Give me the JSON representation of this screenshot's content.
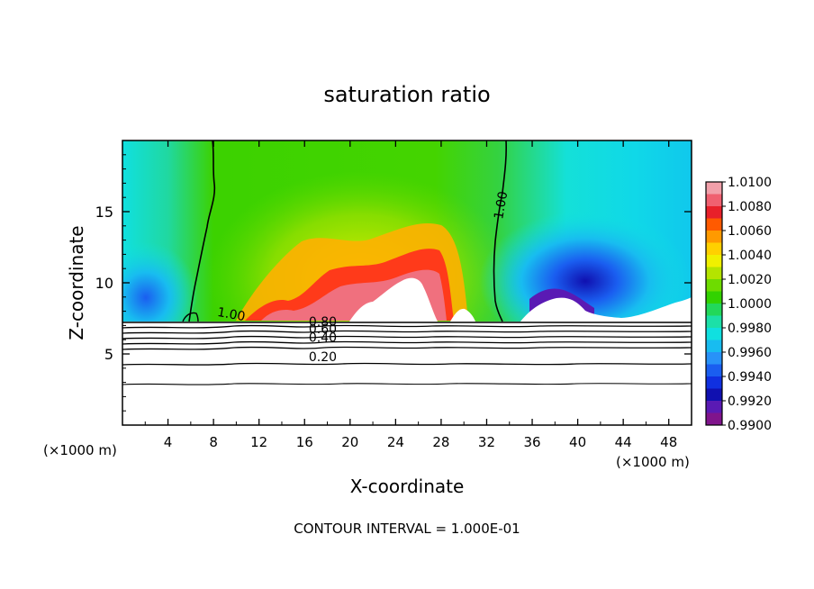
{
  "chart_data": {
    "type": "heatmap",
    "title": "saturation ratio",
    "xlabel": "X-coordinate",
    "ylabel": "Z-coordinate",
    "x_unit_left": "(×1000 m)",
    "x_unit_right": "(×1000 m)",
    "footer": "CONTOUR INTERVAL = 1.000E-01",
    "xlim": [
      0,
      50
    ],
    "ylim": [
      0,
      20
    ],
    "x_ticks": [
      4,
      8,
      12,
      16,
      20,
      24,
      28,
      32,
      36,
      40,
      44,
      48
    ],
    "x_tick_labels": [
      "4",
      "8",
      "12",
      "16",
      "20",
      "24",
      "28",
      "32",
      "36",
      "40",
      "44",
      "48"
    ],
    "y_ticks": [
      5,
      10,
      15
    ],
    "y_tick_labels": [
      "5",
      "10",
      "15"
    ],
    "colorbar": {
      "min": 0.99,
      "max": 1.01,
      "labels": [
        "1.0100",
        "1.0080",
        "1.0060",
        "1.0040",
        "1.0020",
        "1.0000",
        "0.9980",
        "0.9960",
        "0.9940",
        "0.9920",
        "0.9900"
      ],
      "colors": [
        "#f2a0aa",
        "#f06070",
        "#e8202a",
        "#ff5a00",
        "#ff9a00",
        "#ffd000",
        "#f0f000",
        "#b4e400",
        "#6edc00",
        "#32d200",
        "#22d85a",
        "#1ce0a8",
        "#10e0e0",
        "#18bcf0",
        "#2892f8",
        "#1a5ef0",
        "#1030e0",
        "#1010b0",
        "#5a1ab4",
        "#80148c"
      ]
    },
    "contours": [
      {
        "label": "1.00",
        "x": 9.5,
        "z": 7.5,
        "angle": 10
      },
      {
        "label": "1.00",
        "x": 33.6,
        "z": 15.4,
        "angle": -80
      },
      {
        "label": "0.80",
        "x": 17.6,
        "z": 6.95,
        "angle": 0
      },
      {
        "label": "0.60",
        "x": 17.6,
        "z": 6.45,
        "angle": 0
      },
      {
        "label": "0.40",
        "x": 17.6,
        "z": 5.85,
        "angle": 0
      },
      {
        "label": "0.20",
        "x": 17.6,
        "z": 4.5,
        "angle": 0
      }
    ],
    "grid": false,
    "legend": "right"
  }
}
